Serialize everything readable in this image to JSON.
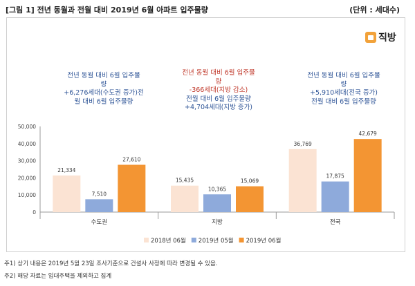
{
  "header": {
    "title": "[그림 1] 전년 동월과 전월 대비 2019년 6월 아파트 입주물량",
    "unit": "(단위 : 세대수)"
  },
  "logo": {
    "text": "직방",
    "icon": "house-icon",
    "color": "#f2a23a"
  },
  "annotations": [
    {
      "lines": [
        "전년 동월 대비 6월 입주물",
        "량",
        "+6,276세대(수도권 증가)전",
        "월 대비 6월 입주물량"
      ],
      "color": "#2f5597",
      "highlight": []
    },
    {
      "lines": [
        "전년 동월 대비 6월 입주물",
        "량",
        "-366세대(지방 감소)",
        "전월 대비 6월 입주물량",
        "+4,704세대(지방 증가)"
      ],
      "color": "#2f5597",
      "highlight": [
        0,
        1,
        2
      ]
    },
    {
      "lines": [
        "전년 동월 대비 6월 입주물",
        "량",
        "+5,910세대(전국 증가)",
        "전월 대비 6월 입주물량"
      ],
      "color": "#2f5597",
      "highlight": []
    }
  ],
  "highlight_color": "#c0392b",
  "chart_data": {
    "type": "bar",
    "title": "전년 동월과 전월 대비 2019년 6월 아파트 입주물량",
    "categories": [
      "수도권",
      "지방",
      "전국"
    ],
    "series": [
      {
        "name": "2018년 06월",
        "values": [
          21334,
          15435,
          36769
        ],
        "color": "#fbe3d3"
      },
      {
        "name": "2019년 05월",
        "values": [
          7510,
          10365,
          17875
        ],
        "color": "#8eaadb"
      },
      {
        "name": "2019년 06월",
        "values": [
          27610,
          15069,
          42679
        ],
        "color": "#f39533"
      }
    ],
    "value_labels": [
      [
        "21,334",
        "15,435",
        "36,769"
      ],
      [
        "7,510",
        "10,365",
        "17,875"
      ],
      [
        "27,610",
        "15,069",
        "42,679"
      ]
    ],
    "ylim": [
      0,
      50000
    ],
    "yticks": [
      0,
      10000,
      20000,
      30000,
      40000,
      50000
    ],
    "ytick_labels": [
      "0",
      "10,000",
      "20,000",
      "30,000",
      "40,000",
      "50,000"
    ],
    "xlabel": "",
    "ylabel": "",
    "legend_position": "bottom-right"
  },
  "footnotes": [
    "주1) 상기 내용은 2019년 5월 23일 조사기준으로 건설사 사정에 따라 변경될 수 있음.",
    "주2) 해당 자료는 임대주택을 제외하고 집계"
  ]
}
